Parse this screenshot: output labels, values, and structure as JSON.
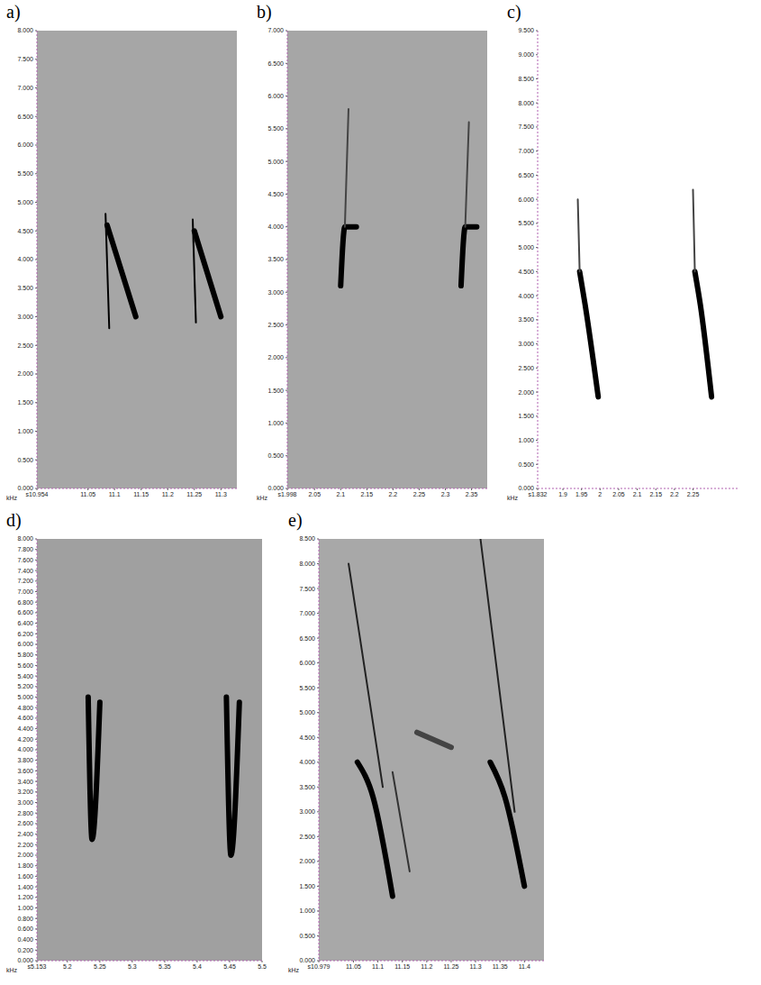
{
  "chart_data": [
    {
      "type": "line",
      "title": "a)",
      "y_label": "kHz",
      "grid": false,
      "xlim": [
        10.954,
        11.33
      ],
      "xticks": [
        {
          "value": 10.954,
          "label": "s10.954"
        },
        11.05,
        11.1,
        11.15,
        11.2,
        11.25,
        11.3
      ],
      "ylim": [
        0,
        8
      ],
      "yticks": [
        {
          "value": 0,
          "label": "0.000"
        },
        {
          "value": 0.5,
          "label": "0.500"
        },
        {
          "value": 1,
          "label": "1.000"
        },
        {
          "value": 1.5,
          "label": "1.500"
        },
        {
          "value": 2,
          "label": "2.000"
        },
        {
          "value": 2.5,
          "label": "2.500"
        },
        {
          "value": 3,
          "label": "3.000"
        },
        {
          "value": 3.5,
          "label": "3.500"
        },
        {
          "value": 4,
          "label": "4.000"
        },
        {
          "value": 4.5,
          "label": "4.500"
        },
        {
          "value": 5,
          "label": "5.000"
        },
        {
          "value": 5.5,
          "label": "5.500"
        },
        {
          "value": 6,
          "label": "6.000"
        },
        {
          "value": 6.5,
          "label": "6.500"
        },
        {
          "value": 7,
          "label": "7.000"
        },
        {
          "value": 7.5,
          "label": "7.500"
        },
        {
          "value": 8,
          "label": "8.000"
        }
      ],
      "series": [
        {
          "color": "#000000",
          "line_style": "thin",
          "x": [
            11.083,
            11.09
          ],
          "values": [
            4.8,
            2.8
          ]
        },
        {
          "color": "#000000",
          "line_style": "thick",
          "x": [
            11.086,
            11.14
          ],
          "values": [
            4.6,
            3.0
          ]
        },
        {
          "color": "#000000",
          "line_style": "thin",
          "x": [
            11.247,
            11.253
          ],
          "values": [
            4.7,
            2.9
          ]
        },
        {
          "color": "#000000",
          "line_style": "thick",
          "x": [
            11.25,
            11.3
          ],
          "values": [
            4.5,
            3.0
          ]
        }
      ]
    },
    {
      "type": "line",
      "title": "b)",
      "y_label": "kHz",
      "grid": false,
      "xlim": [
        1.998,
        2.38
      ],
      "xticks": [
        {
          "value": 1.998,
          "label": "s1.998"
        },
        2.05,
        2.1,
        2.15,
        2.2,
        2.25,
        2.3,
        2.35
      ],
      "ylim": [
        0,
        7
      ],
      "yticks": [
        {
          "value": 0,
          "label": "0.000"
        },
        {
          "value": 0.5,
          "label": "0.500"
        },
        {
          "value": 1,
          "label": "1.000"
        },
        {
          "value": 1.5,
          "label": "1.500"
        },
        {
          "value": 2,
          "label": "2.000"
        },
        {
          "value": 2.5,
          "label": "2.500"
        },
        {
          "value": 3,
          "label": "3.000"
        },
        {
          "value": 3.5,
          "label": "3.500"
        },
        {
          "value": 4,
          "label": "4.000"
        },
        {
          "value": 4.5,
          "label": "4.500"
        },
        {
          "value": 5,
          "label": "5.000"
        },
        {
          "value": 5.5,
          "label": "5.500"
        },
        {
          "value": 6,
          "label": "6.000"
        },
        {
          "value": 6.5,
          "label": "6.500"
        },
        {
          "value": 7,
          "label": "7.000"
        }
      ],
      "series": [
        {
          "color": "#000000",
          "line_style": "thick",
          "x": [
            2.1,
            2.108,
            2.13
          ],
          "values": [
            3.1,
            4.0,
            4.0
          ]
        },
        {
          "color": "#444444",
          "line_style": "thin",
          "x": [
            2.108,
            2.115
          ],
          "values": [
            4.0,
            5.8
          ]
        },
        {
          "color": "#000000",
          "line_style": "thick",
          "x": [
            2.33,
            2.338,
            2.36
          ],
          "values": [
            3.1,
            4.0,
            4.0
          ]
        },
        {
          "color": "#444444",
          "line_style": "thin",
          "x": [
            2.338,
            2.345
          ],
          "values": [
            4.0,
            5.6
          ]
        }
      ]
    },
    {
      "type": "line",
      "title": "c)",
      "y_label": "kHz",
      "grid": false,
      "xlim": [
        1.832,
        2.37
      ],
      "xticks": [
        {
          "value": 1.832,
          "label": "s1.832"
        },
        1.9,
        1.95,
        2,
        2.05,
        2.1,
        2.15,
        2.2,
        2.25
      ],
      "ylim": [
        0,
        9.5
      ],
      "yticks": [
        {
          "value": 0,
          "label": "0.000"
        },
        {
          "value": 0.5,
          "label": "0.500"
        },
        {
          "value": 1,
          "label": "1.000"
        },
        {
          "value": 1.5,
          "label": "1.500"
        },
        {
          "value": 2,
          "label": "2.000"
        },
        {
          "value": 2.5,
          "label": "2.500"
        },
        {
          "value": 3,
          "label": "3.000"
        },
        {
          "value": 3.5,
          "label": "3.500"
        },
        {
          "value": 4,
          "label": "4.000"
        },
        {
          "value": 4.5,
          "label": "4.500"
        },
        {
          "value": 5,
          "label": "5.000"
        },
        {
          "value": 5.5,
          "label": "5.500"
        },
        {
          "value": 6,
          "label": "6.000"
        },
        {
          "value": 6.5,
          "label": "6.500"
        },
        {
          "value": 7,
          "label": "7.000"
        },
        {
          "value": 7.5,
          "label": "7.500"
        },
        {
          "value": 8,
          "label": "8.000"
        },
        {
          "value": 8.5,
          "label": "8.500"
        },
        {
          "value": 9,
          "label": "9.000"
        },
        {
          "value": 9.5,
          "label": "9.500"
        }
      ],
      "series": [
        {
          "color": "#000000",
          "line_style": "thick",
          "x": [
            1.945,
            1.96,
            1.995
          ],
          "values": [
            4.5,
            3.8,
            1.9
          ]
        },
        {
          "color": "#444444",
          "line_style": "thin",
          "x": [
            1.94,
            1.945
          ],
          "values": [
            6.0,
            4.5
          ]
        },
        {
          "color": "#000000",
          "line_style": "thick",
          "x": [
            2.255,
            2.27,
            2.3
          ],
          "values": [
            4.5,
            3.8,
            1.9
          ]
        },
        {
          "color": "#444444",
          "line_style": "thin",
          "x": [
            2.25,
            2.255
          ],
          "values": [
            6.2,
            4.5
          ]
        }
      ]
    },
    {
      "type": "line",
      "title": "d)",
      "y_label": "kHz",
      "grid": false,
      "xlim": [
        5.153,
        5.5
      ],
      "xticks": [
        {
          "value": 5.153,
          "label": "s5.153"
        },
        5.2,
        5.25,
        5.3,
        5.35,
        5.4,
        5.45,
        5.5
      ],
      "ylim": [
        0,
        8
      ],
      "yticks": [
        {
          "value": 0,
          "label": "0.000"
        },
        {
          "value": 0.2,
          "label": "0.200"
        },
        {
          "value": 0.4,
          "label": "0.400"
        },
        {
          "value": 0.6,
          "label": "0.600"
        },
        {
          "value": 0.8,
          "label": "0.800"
        },
        {
          "value": 1,
          "label": "1.000"
        },
        {
          "value": 1.2,
          "label": "1.200"
        },
        {
          "value": 1.4,
          "label": "1.400"
        },
        {
          "value": 1.6,
          "label": "1.600"
        },
        {
          "value": 1.8,
          "label": "1.800"
        },
        {
          "value": 2,
          "label": "2.000"
        },
        {
          "value": 2.2,
          "label": "2.200"
        },
        {
          "value": 2.4,
          "label": "2.400"
        },
        {
          "value": 2.6,
          "label": "2.600"
        },
        {
          "value": 2.8,
          "label": "2.800"
        },
        {
          "value": 3,
          "label": "3.000"
        },
        {
          "value": 3.2,
          "label": "3.200"
        },
        {
          "value": 3.4,
          "label": "3.400"
        },
        {
          "value": 3.6,
          "label": "3.600"
        },
        {
          "value": 3.8,
          "label": "3.800"
        },
        {
          "value": 4,
          "label": "4.000"
        },
        {
          "value": 4.2,
          "label": "4.200"
        },
        {
          "value": 4.4,
          "label": "4.400"
        },
        {
          "value": 4.6,
          "label": "4.600"
        },
        {
          "value": 4.8,
          "label": "4.800"
        },
        {
          "value": 5,
          "label": "5.000"
        },
        {
          "value": 5.2,
          "label": "5.200"
        },
        {
          "value": 5.4,
          "label": "5.400"
        },
        {
          "value": 5.6,
          "label": "5.600"
        },
        {
          "value": 5.8,
          "label": "5.800"
        },
        {
          "value": 6,
          "label": "6.000"
        },
        {
          "value": 6.2,
          "label": "6.200"
        },
        {
          "value": 6.4,
          "label": "6.400"
        },
        {
          "value": 6.6,
          "label": "6.600"
        },
        {
          "value": 6.8,
          "label": "6.800"
        },
        {
          "value": 7,
          "label": "7.000"
        },
        {
          "value": 7.2,
          "label": "7.200"
        },
        {
          "value": 7.4,
          "label": "7.400"
        },
        {
          "value": 7.6,
          "label": "7.600"
        },
        {
          "value": 7.8,
          "label": "7.800"
        },
        {
          "value": 8,
          "label": "8.000"
        }
      ],
      "series": [
        {
          "color": "#000000",
          "line_style": "thick",
          "x": [
            5.232,
            5.238,
            5.25
          ],
          "values": [
            5.0,
            2.3,
            4.9
          ]
        },
        {
          "color": "#000000",
          "line_style": "thick",
          "x": [
            5.445,
            5.452,
            5.465
          ],
          "values": [
            5.0,
            2.0,
            4.9
          ]
        }
      ]
    },
    {
      "type": "line",
      "title": "e)",
      "y_label": "kHz",
      "grid": false,
      "xlim": [
        10.979,
        11.44
      ],
      "xticks": [
        {
          "value": 10.979,
          "label": "s10.979"
        },
        11.05,
        11.1,
        11.15,
        11.2,
        11.25,
        11.3,
        11.35,
        11.4
      ],
      "ylim": [
        0,
        8.5
      ],
      "yticks": [
        {
          "value": 0,
          "label": "0.000"
        },
        {
          "value": 0.5,
          "label": "0.500"
        },
        {
          "value": 1,
          "label": "1.000"
        },
        {
          "value": 1.5,
          "label": "1.500"
        },
        {
          "value": 2,
          "label": "2.000"
        },
        {
          "value": 2.5,
          "label": "2.500"
        },
        {
          "value": 3,
          "label": "3.000"
        },
        {
          "value": 3.5,
          "label": "3.500"
        },
        {
          "value": 4,
          "label": "4.000"
        },
        {
          "value": 4.5,
          "label": "4.500"
        },
        {
          "value": 5,
          "label": "5.000"
        },
        {
          "value": 5.5,
          "label": "5.500"
        },
        {
          "value": 6,
          "label": "6.000"
        },
        {
          "value": 6.5,
          "label": "6.500"
        },
        {
          "value": 7,
          "label": "7.000"
        },
        {
          "value": 7.5,
          "label": "7.500"
        },
        {
          "value": 8,
          "label": "8.000"
        },
        {
          "value": 8.5,
          "label": "8.500"
        }
      ],
      "series": [
        {
          "color": "#000000",
          "line_style": "thick",
          "x": [
            11.058,
            11.09,
            11.13
          ],
          "values": [
            4.0,
            3.3,
            1.3
          ]
        },
        {
          "color": "#222222",
          "line_style": "thin",
          "x": [
            11.04,
            11.11
          ],
          "values": [
            8.0,
            3.5
          ]
        },
        {
          "color": "#333333",
          "line_style": "thin",
          "x": [
            11.13,
            11.165
          ],
          "values": [
            3.8,
            1.8
          ]
        },
        {
          "color": "#444444",
          "line_style": "thick",
          "x": [
            11.18,
            11.25
          ],
          "values": [
            4.6,
            4.3
          ]
        },
        {
          "color": "#000000",
          "line_style": "thick",
          "x": [
            11.33,
            11.36,
            11.4
          ],
          "values": [
            4.0,
            3.3,
            1.5
          ]
        },
        {
          "color": "#222222",
          "line_style": "thin",
          "x": [
            11.31,
            11.38
          ],
          "values": [
            8.5,
            3.0
          ]
        }
      ]
    }
  ]
}
